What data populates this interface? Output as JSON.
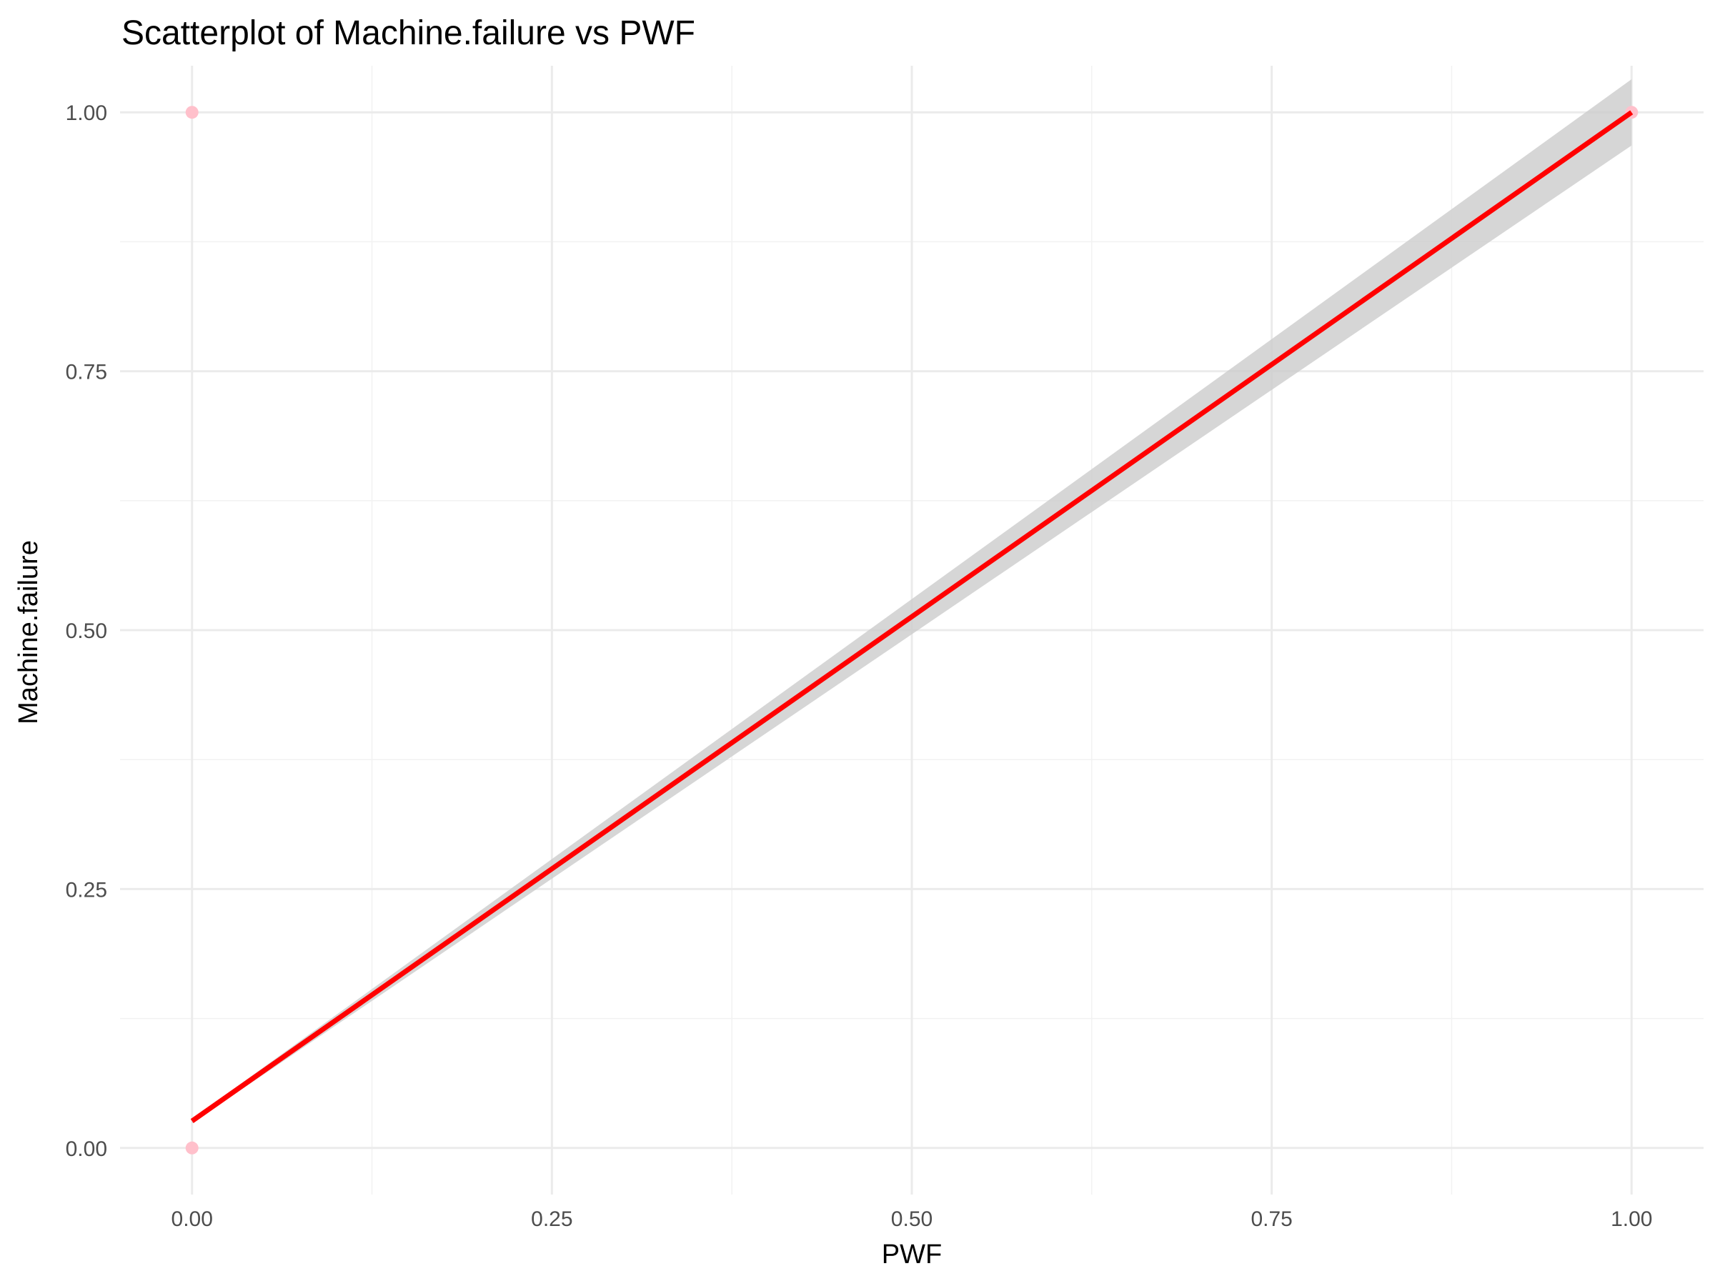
{
  "chart_data": {
    "type": "scatter",
    "title": "Scatterplot of Machine.failure vs PWF",
    "xlabel": "PWF",
    "ylabel": "Machine.failure",
    "xlim": [
      -0.05,
      1.05
    ],
    "ylim": [
      -0.045,
      1.045
    ],
    "x_ticks": [
      0.0,
      0.25,
      0.5,
      0.75,
      1.0
    ],
    "x_tick_labels": [
      "0.00",
      "0.25",
      "0.50",
      "0.75",
      "1.00"
    ],
    "y_ticks": [
      0.0,
      0.25,
      0.5,
      0.75,
      1.0
    ],
    "y_tick_labels": [
      "0.00",
      "0.25",
      "0.50",
      "0.75",
      "1.00"
    ],
    "grid": true,
    "points": [
      {
        "x": 0,
        "y": 0
      },
      {
        "x": 0,
        "y": 1
      },
      {
        "x": 1,
        "y": 1
      }
    ],
    "fit_line": {
      "x": [
        0,
        1
      ],
      "y": [
        0.026,
        1.0
      ],
      "ci_lower": [
        0.024,
        0.968
      ],
      "ci_upper": [
        0.028,
        1.032
      ]
    },
    "colors": {
      "points": "#ffc0cb",
      "fit_line": "#ff0000",
      "ci_band": "#cccccc"
    }
  }
}
